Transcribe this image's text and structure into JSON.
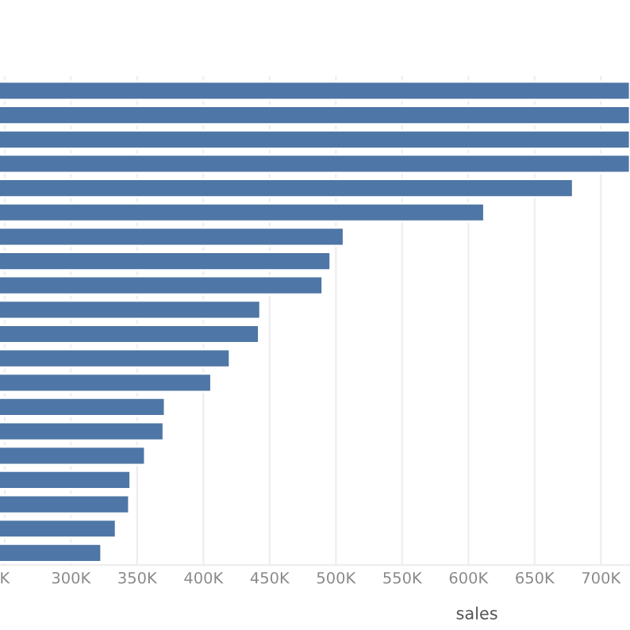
{
  "chart_data": {
    "type": "bar",
    "orientation": "horizontal",
    "xlabel": "sales",
    "categories": [
      null,
      null,
      null,
      null,
      null,
      null,
      null,
      null,
      null,
      null,
      null,
      null,
      null,
      null,
      null,
      null,
      null,
      null,
      null,
      null
    ],
    "values": [
      722000,
      722000,
      722000,
      722000,
      679000,
      612000,
      506000,
      496000,
      490000,
      443000,
      442000,
      420000,
      406000,
      371000,
      370000,
      356000,
      345000,
      344000,
      334000,
      323000
    ],
    "color": "#4e76a6",
    "xlim": [
      246500,
      722000
    ],
    "xticks": [
      {
        "value": 250000,
        "label": "K"
      },
      {
        "value": 300000,
        "label": "300K"
      },
      {
        "value": 350000,
        "label": "350K"
      },
      {
        "value": 400000,
        "label": "400K"
      },
      {
        "value": 450000,
        "label": "450K"
      },
      {
        "value": 500000,
        "label": "500K"
      },
      {
        "value": 550000,
        "label": "550K"
      },
      {
        "value": 600000,
        "label": "600K"
      },
      {
        "value": 650000,
        "label": "650K"
      },
      {
        "value": 700000,
        "label": "700K"
      }
    ],
    "grid": "x",
    "legend": false
  }
}
